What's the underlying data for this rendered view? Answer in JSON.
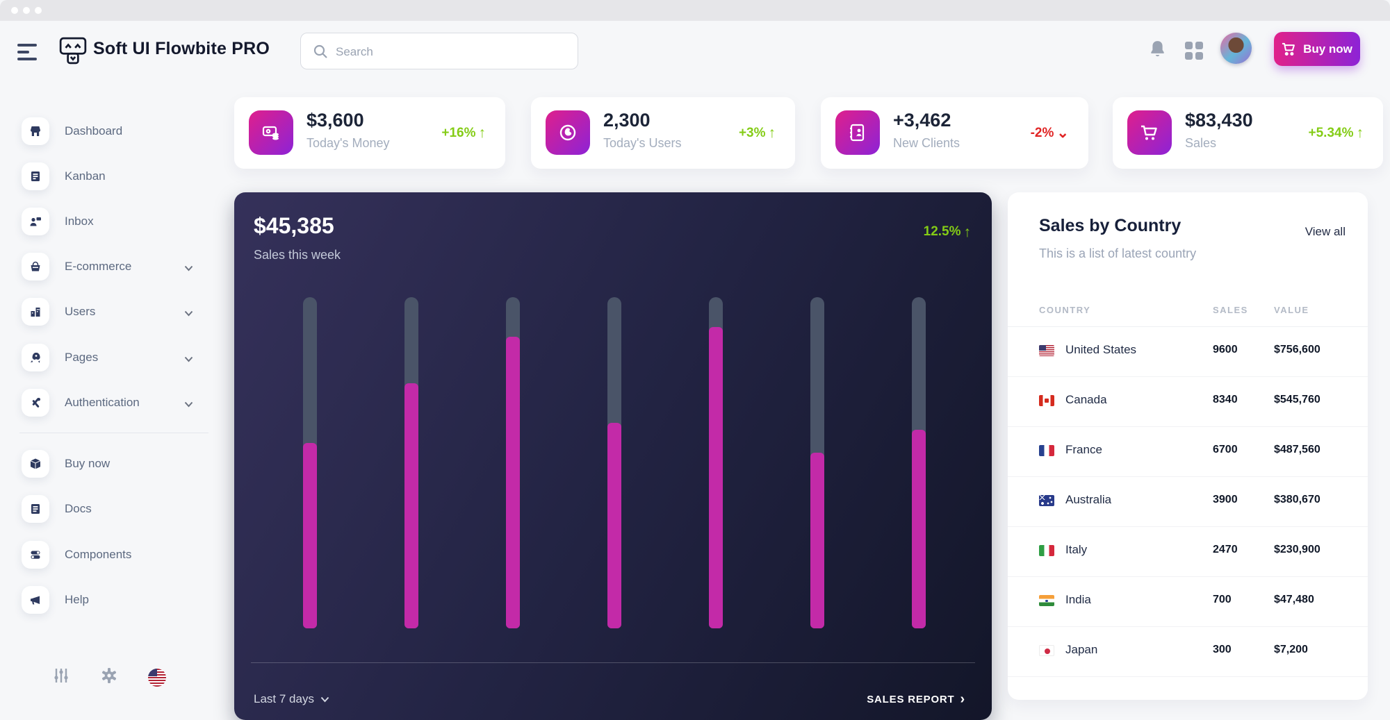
{
  "topbar": {
    "brand": "Soft UI Flowbite PRO",
    "search_placeholder": "Search",
    "buy_now_label": "Buy now"
  },
  "sidebar": {
    "primary": [
      {
        "label": "Dashboard",
        "icon": "store-icon"
      },
      {
        "label": "Kanban",
        "icon": "board-icon"
      },
      {
        "label": "Inbox",
        "icon": "person-message-icon"
      },
      {
        "label": "E-commerce",
        "icon": "basket-icon",
        "expandable": true
      },
      {
        "label": "Users",
        "icon": "building-icon",
        "expandable": true
      },
      {
        "label": "Pages",
        "icon": "rocket-icon",
        "expandable": true
      },
      {
        "label": "Authentication",
        "icon": "tools-icon",
        "expandable": true
      }
    ],
    "secondary": [
      {
        "label": "Buy now",
        "icon": "cube-icon"
      },
      {
        "label": "Docs",
        "icon": "document-icon"
      },
      {
        "label": "Components",
        "icon": "toggles-icon"
      },
      {
        "label": "Help",
        "icon": "megaphone-icon"
      }
    ]
  },
  "stats": {
    "cards": [
      {
        "value": "$3,600",
        "label": "Today's Money",
        "delta": "+16%",
        "arrow": "↑",
        "direction": "up",
        "icon": "money-icon"
      },
      {
        "value": "2,300",
        "label": "Today's Users",
        "delta": "+3%",
        "arrow": "↑",
        "direction": "up",
        "icon": "globe-user-icon"
      },
      {
        "value": "+3,462",
        "label": "New Clients",
        "delta": "-2%",
        "arrow": "⌄",
        "direction": "down",
        "icon": "address-book-icon"
      },
      {
        "value": "$83,430",
        "label": "Sales",
        "delta": "+5.34%",
        "arrow": "↑",
        "direction": "up",
        "icon": "cart-icon"
      }
    ]
  },
  "sales_week": {
    "value": "$45,385",
    "label": "Sales this week",
    "delta": "12.5%",
    "delta_arrow": "↑",
    "footer_period": "Last 7 days",
    "footer_report": "SALES REPORT",
    "report_chevron": "›"
  },
  "chart_data": {
    "type": "bar",
    "title": "Sales this week",
    "categories": [
      "",
      "",
      "",
      "",
      "",
      "",
      ""
    ],
    "series": [
      {
        "name": "sales-fill-percent-of-track",
        "values": [
          56,
          74,
          88,
          62,
          91,
          53,
          60
        ]
      }
    ],
    "ylim": [
      0,
      100
    ],
    "grid": false,
    "legend": "none",
    "colors": {
      "fill": "#c32aa8",
      "track": "#4a5468"
    }
  },
  "country": {
    "title": "Sales by Country",
    "subtitle": "This is a list of latest country",
    "view_all_label": "View all",
    "columns": [
      "COUNTRY",
      "SALES",
      "VALUE"
    ],
    "rows": [
      {
        "country": "United States",
        "flag": "us",
        "sales": "9600",
        "value": "$756,600"
      },
      {
        "country": "Canada",
        "flag": "ca",
        "sales": "8340",
        "value": "$545,760"
      },
      {
        "country": "France",
        "flag": "fr",
        "sales": "6700",
        "value": "$487,560"
      },
      {
        "country": "Australia",
        "flag": "au",
        "sales": "3900",
        "value": "$380,670"
      },
      {
        "country": "Italy",
        "flag": "it",
        "sales": "2470",
        "value": "$230,900"
      },
      {
        "country": "India",
        "flag": "in",
        "sales": "700",
        "value": "$47,480"
      },
      {
        "country": "Japan",
        "flag": "jp",
        "sales": "300",
        "value": "$7,200"
      }
    ]
  },
  "colors": {
    "accent_green": "#84cc16",
    "accent_red": "#e02424",
    "brand_gradient_from": "#e0218a",
    "brand_gradient_to": "#8d23d6",
    "bar_fill": "#c32aa8",
    "bar_track": "#4a5468",
    "dark_card_from": "#35315a",
    "dark_card_to": "#131629",
    "page_background": "#f6f7f9"
  }
}
